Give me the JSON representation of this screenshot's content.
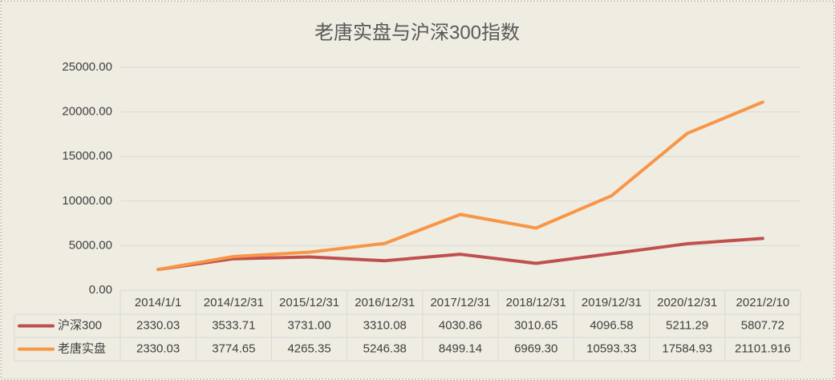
{
  "chart_data": {
    "type": "line",
    "title": "老唐实盘与沪深300指数",
    "categories": [
      "2014/1/1",
      "2014/12/31",
      "2015/12/31",
      "2016/12/31",
      "2017/12/31",
      "2018/12/31",
      "2019/12/31",
      "2020/12/31",
      "2021/2/10"
    ],
    "series": [
      {
        "name": "沪深300",
        "color": "#c0504d",
        "values": [
          2330.03,
          3533.71,
          3731.0,
          3310.08,
          4030.86,
          3010.65,
          4096.58,
          5211.29,
          5807.72
        ],
        "value_labels": [
          "2330.03",
          "3533.71",
          "3731.00",
          "3310.08",
          "4030.86",
          "3010.65",
          "4096.58",
          "5211.29",
          "5807.72"
        ]
      },
      {
        "name": "老唐实盘",
        "color": "#f79646",
        "values": [
          2330.03,
          3774.65,
          4265.35,
          5246.38,
          8499.14,
          6969.3,
          10593.33,
          17584.93,
          21101.916
        ],
        "value_labels": [
          "2330.03",
          "3774.65",
          "4265.35",
          "5246.38",
          "8499.14",
          "6969.30",
          "10593.33",
          "17584.93",
          "21101.916"
        ]
      }
    ],
    "ylim": [
      0,
      25000
    ],
    "yticks": [
      {
        "value": 0,
        "label": "0.00"
      },
      {
        "value": 5000,
        "label": "5000.00"
      },
      {
        "value": 10000,
        "label": "10000.00"
      },
      {
        "value": 15000,
        "label": "15000.00"
      },
      {
        "value": 20000,
        "label": "20000.00"
      },
      {
        "value": 25000,
        "label": "25000.00"
      }
    ],
    "grid": true
  }
}
